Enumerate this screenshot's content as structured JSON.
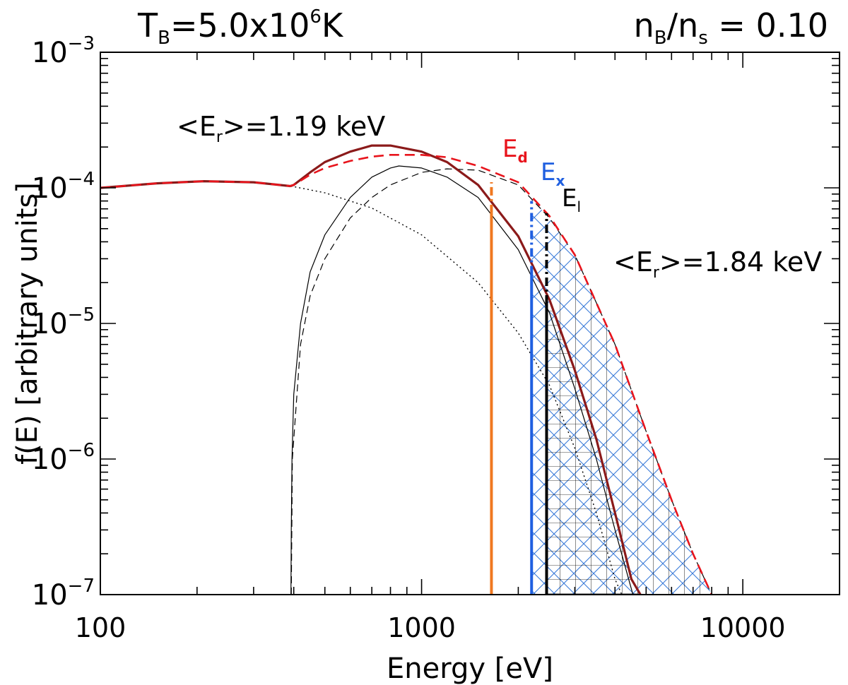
{
  "chart_data": {
    "type": "line",
    "x_scale": "log",
    "y_scale": "log",
    "xlim": [
      100,
      20000
    ],
    "ylim": [
      1e-07,
      0.001
    ],
    "xlabel": "Energy [eV]",
    "ylabel": "f(E)  [arbitrary units]",
    "x_ticks": [
      {
        "value": 100,
        "label": "100"
      },
      {
        "value": 1000,
        "label": "1000"
      },
      {
        "value": 10000,
        "label": "10000"
      }
    ],
    "y_ticks": [
      {
        "value": 1e-07,
        "base": "10",
        "exp": "−7"
      },
      {
        "value": 1e-06,
        "base": "10",
        "exp": "−6"
      },
      {
        "value": 1e-05,
        "base": "10",
        "exp": "−5"
      },
      {
        "value": 0.0001,
        "base": "10",
        "exp": "−4"
      },
      {
        "value": 0.001,
        "base": "10",
        "exp": "−3"
      }
    ],
    "header_left": {
      "main": "T",
      "sub": "B",
      "rest": "=5.0x10",
      "sup": "6",
      "unit": "K"
    },
    "header_right": {
      "n1": "n",
      "sub1": "B",
      "slash": "/",
      "n2": "n",
      "sub2": "s",
      "rest": " = 0.10"
    },
    "colors": {
      "red": "#e8141c",
      "dark_red": "#8b1a1a",
      "orange": "#f07820",
      "blue": "#1f5fe0",
      "hatch_blue": "#3a7ad8",
      "black": "#000000"
    },
    "series": [
      {
        "name": "thermal-low",
        "style": "dotted",
        "color": "#000000",
        "points": [
          [
            100,
            0.0001
          ],
          [
            150,
            0.000108
          ],
          [
            210,
            0.000112
          ],
          [
            300,
            0.00011
          ],
          [
            400,
            0.000102
          ],
          [
            500,
            9.2e-05
          ],
          [
            700,
            7.1e-05
          ],
          [
            1000,
            4.5e-05
          ],
          [
            1500,
            2e-05
          ],
          [
            2000,
            8.5e-06
          ],
          [
            2500,
            3.5e-06
          ],
          [
            3000,
            1.2e-06
          ],
          [
            3500,
            4e-07
          ],
          [
            4000,
            1.3e-07
          ],
          [
            4200,
            1e-07
          ]
        ]
      },
      {
        "name": "reflected-solid",
        "style": "solid-thin",
        "color": "#000000",
        "points": [
          [
            392,
            1e-07
          ],
          [
            393,
            3e-07
          ],
          [
            395,
            1e-06
          ],
          [
            400,
            3e-06
          ],
          [
            420,
            1e-05
          ],
          [
            450,
            2.4e-05
          ],
          [
            500,
            4.5e-05
          ],
          [
            600,
            8.5e-05
          ],
          [
            700,
            0.00012
          ],
          [
            800,
            0.00014
          ],
          [
            850,
            0.000145
          ],
          [
            1000,
            0.00014
          ],
          [
            1200,
            0.00012
          ],
          [
            1500,
            8.5e-05
          ],
          [
            2000,
            3.5e-05
          ],
          [
            2500,
            1.2e-05
          ],
          [
            3000,
            3.3e-06
          ],
          [
            3500,
            1e-06
          ],
          [
            4000,
            3e-07
          ],
          [
            4500,
            1.1e-07
          ],
          [
            4550,
            1e-07
          ]
        ]
      },
      {
        "name": "reflected-dashed",
        "style": "dashed-thin",
        "color": "#000000",
        "points": [
          [
            393,
            1e-07
          ],
          [
            396,
            1e-06
          ],
          [
            420,
            7e-06
          ],
          [
            450,
            1.6e-05
          ],
          [
            500,
            3e-05
          ],
          [
            600,
            6e-05
          ],
          [
            700,
            8.5e-05
          ],
          [
            800,
            0.000105
          ],
          [
            1000,
            0.00013
          ],
          [
            1200,
            0.000138
          ],
          [
            1500,
            0.000135
          ],
          [
            2000,
            0.000105
          ],
          [
            2500,
            6e-05
          ],
          [
            3000,
            3.2e-05
          ],
          [
            4000,
            7e-06
          ],
          [
            5000,
            1.6e-06
          ],
          [
            6000,
            5e-07
          ],
          [
            7000,
            2e-07
          ],
          [
            8000,
            1e-07
          ]
        ]
      },
      {
        "name": "total-solid",
        "style": "solid-thick",
        "color": "#8b1a1a",
        "points": [
          [
            100,
            0.0001
          ],
          [
            150,
            0.000108
          ],
          [
            210,
            0.000112
          ],
          [
            300,
            0.00011
          ],
          [
            390,
            0.000103
          ],
          [
            400,
            0.000105
          ],
          [
            450,
            0.00013
          ],
          [
            500,
            0.000155
          ],
          [
            600,
            0.000185
          ],
          [
            700,
            0.000205
          ],
          [
            800,
            0.000205
          ],
          [
            1000,
            0.000185
          ],
          [
            1200,
            0.000155
          ],
          [
            1500,
            0.000105
          ],
          [
            2000,
            4.4e-05
          ],
          [
            2500,
            1.5e-05
          ],
          [
            3000,
            4.5e-06
          ],
          [
            3500,
            1.4e-06
          ],
          [
            4000,
            4e-07
          ],
          [
            4500,
            1.3e-07
          ],
          [
            4800,
            1e-07
          ]
        ]
      },
      {
        "name": "total-dashed",
        "style": "dashed-thick",
        "color": "#e8141c",
        "points": [
          [
            100,
            0.0001
          ],
          [
            150,
            0.000108
          ],
          [
            210,
            0.000112
          ],
          [
            300,
            0.00011
          ],
          [
            390,
            0.000103
          ],
          [
            400,
            0.000105
          ],
          [
            450,
            0.000125
          ],
          [
            500,
            0.00014
          ],
          [
            600,
            0.000158
          ],
          [
            700,
            0.00017
          ],
          [
            800,
            0.000175
          ],
          [
            1000,
            0.000175
          ],
          [
            1200,
            0.000168
          ],
          [
            1500,
            0.000145
          ],
          [
            2000,
            0.00011
          ],
          [
            2500,
            6.2e-05
          ],
          [
            3000,
            3.2e-05
          ],
          [
            4000,
            7e-06
          ],
          [
            5000,
            1.6e-06
          ],
          [
            6000,
            5e-07
          ],
          [
            7000,
            2e-07
          ],
          [
            8000,
            1e-07
          ]
        ]
      }
    ],
    "markers": [
      {
        "name": "E_d",
        "label": "E",
        "sub": "d",
        "x": 1650,
        "y_solid_top": 6.5e-05,
        "y_dash_top": 0.00011,
        "color": "#f07820",
        "label_color": "#e8141c"
      },
      {
        "name": "E_x",
        "label": "E",
        "sub": "x",
        "x": 2200,
        "y_solid_top": 2.3e-05,
        "y_dash_top": 8e-05,
        "color": "#1f5fe0",
        "label_color": "#1f5fe0"
      },
      {
        "name": "E_l",
        "label": "E",
        "sub": "l",
        "x": 2450,
        "y_solid_top": 1.4e-05,
        "y_dash_top": 6.5e-05,
        "color": "#000000",
        "label_color": "#000000"
      }
    ],
    "annotations": [
      {
        "name": "mean-energy-low",
        "lt": "<E",
        "sub": "r",
        "rest": ">=1.19 keV"
      },
      {
        "name": "mean-energy-high",
        "lt": "<E",
        "sub": "r",
        "rest": ">=1.84 keV"
      }
    ],
    "hatched_regions": [
      {
        "name": "blue-crosshatch",
        "x_from": 2200,
        "bounded_by": "reflected-dashed"
      },
      {
        "name": "black-grid",
        "x_from": 2450,
        "bounded_by": "reflected-dashed"
      }
    ]
  }
}
